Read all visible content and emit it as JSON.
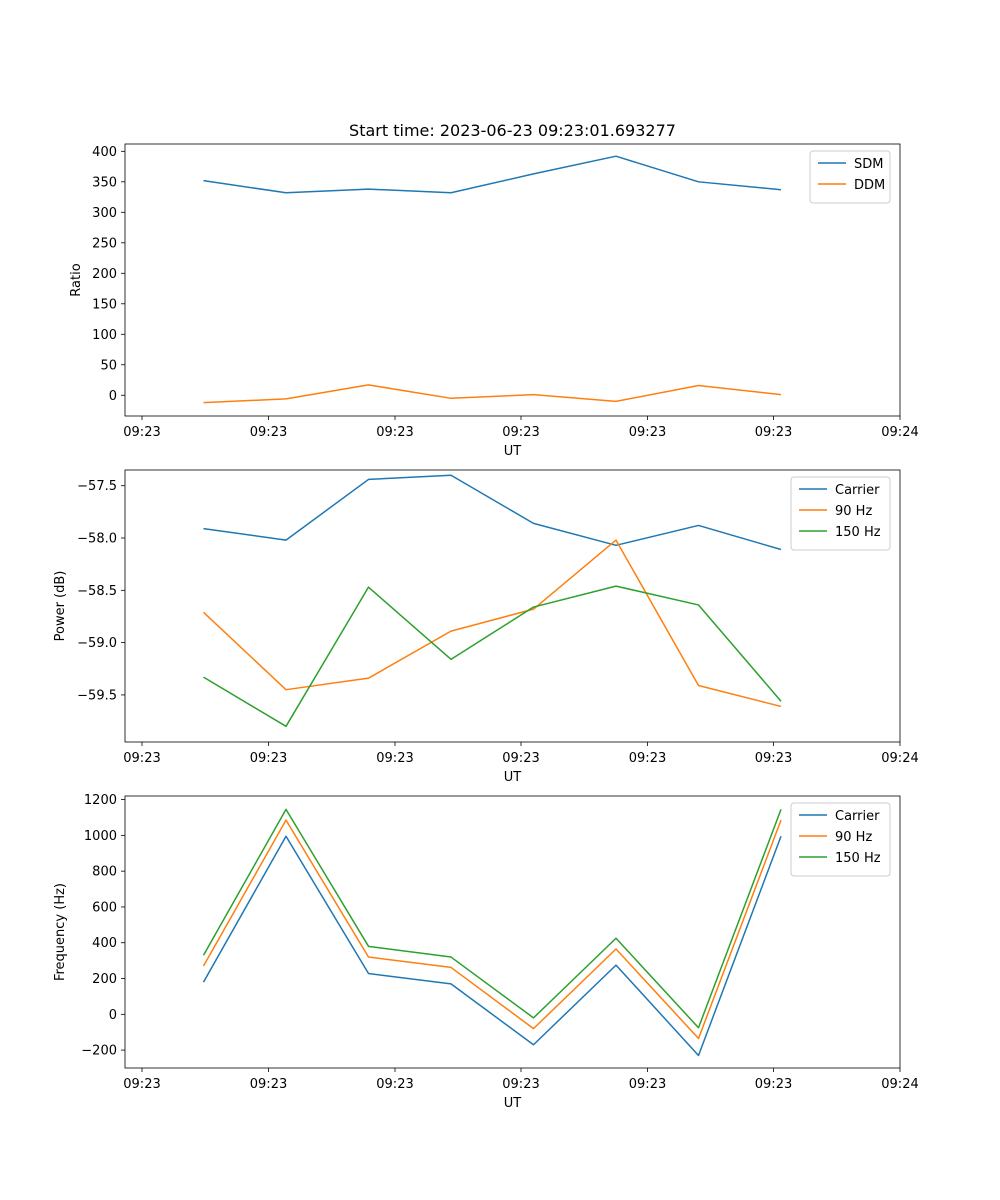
{
  "figure_title": "Start time: 2023-06-23 09:23:01.693277",
  "chart_data": [
    {
      "type": "line",
      "title": "Start time: 2023-06-23 09:23:01.693277",
      "xlabel": "UT",
      "ylabel": "Ratio",
      "x_tick_labels": [
        "09:23",
        "09:23",
        "09:23",
        "09:23",
        "09:23",
        "09:23",
        "09:24"
      ],
      "y_ticks": [
        0,
        50,
        100,
        150,
        200,
        250,
        300,
        350,
        400
      ],
      "y_tick_labels": [
        "0",
        "50",
        "100",
        "150",
        "200",
        "250",
        "300",
        "350",
        "400"
      ],
      "ylim": [
        -34,
        412
      ],
      "grid": false,
      "legend_position": "top-right",
      "series": [
        {
          "name": "SDM",
          "color": "#1f77b4",
          "values": [
            352,
            332,
            338,
            332,
            363,
            392,
            350,
            337
          ]
        },
        {
          "name": "DDM",
          "color": "#ff7f0e",
          "values": [
            -12,
            -6,
            17,
            -5,
            1,
            -10,
            16,
            1
          ]
        }
      ]
    },
    {
      "type": "line",
      "title": "",
      "xlabel": "UT",
      "ylabel": "Power (dB)",
      "x_tick_labels": [
        "09:23",
        "09:23",
        "09:23",
        "09:23",
        "09:23",
        "09:23",
        "09:24"
      ],
      "y_ticks": [
        -59.5,
        -59.0,
        -58.5,
        -58.0,
        -57.5
      ],
      "y_tick_labels": [
        "−59.5",
        "−59.0",
        "−58.5",
        "−58.0",
        "−57.5"
      ],
      "ylim": [
        -59.95,
        -57.35
      ],
      "grid": false,
      "legend_position": "top-right",
      "series": [
        {
          "name": "Carrier",
          "color": "#1f77b4",
          "values": [
            -57.91,
            -58.02,
            -57.44,
            -57.4,
            -57.86,
            -58.07,
            -57.88,
            -58.11
          ]
        },
        {
          "name": "90 Hz",
          "color": "#ff7f0e",
          "values": [
            -58.71,
            -59.45,
            -59.34,
            -58.89,
            -58.68,
            -58.02,
            -59.41,
            -59.61
          ]
        },
        {
          "name": "150 Hz",
          "color": "#2ca02c",
          "values": [
            -59.33,
            -59.8,
            -58.47,
            -59.16,
            -58.66,
            -58.46,
            -58.64,
            -59.56
          ]
        }
      ]
    },
    {
      "type": "line",
      "title": "",
      "xlabel": "UT",
      "ylabel": "Frequency (Hz)",
      "x_tick_labels": [
        "09:23",
        "09:23",
        "09:23",
        "09:23",
        "09:23",
        "09:23",
        "09:24"
      ],
      "y_ticks": [
        -200,
        0,
        200,
        400,
        600,
        800,
        1000,
        1200
      ],
      "y_tick_labels": [
        "−200",
        "0",
        "200",
        "400",
        "600",
        "800",
        "1000",
        "1200"
      ],
      "ylim": [
        -300,
        1220
      ],
      "grid": false,
      "legend_position": "top-right",
      "series": [
        {
          "name": "Carrier",
          "color": "#1f77b4",
          "values": [
            180,
            995,
            228,
            170,
            -170,
            275,
            -230,
            995
          ]
        },
        {
          "name": "90 Hz",
          "color": "#ff7f0e",
          "values": [
            270,
            1085,
            320,
            262,
            -80,
            365,
            -135,
            1085
          ]
        },
        {
          "name": "150 Hz",
          "color": "#2ca02c",
          "values": [
            330,
            1145,
            380,
            320,
            -20,
            425,
            -75,
            1145
          ]
        }
      ]
    }
  ]
}
